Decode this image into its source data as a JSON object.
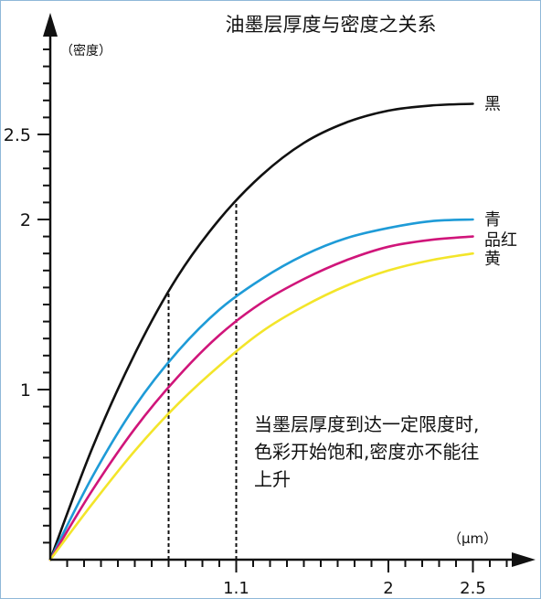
{
  "chart_data": {
    "type": "line",
    "title": "油墨层厚度与密度之关系",
    "ylabel": "（密度）",
    "xlabel": "（μm）",
    "xlim": [
      0,
      2.8
    ],
    "ylim": [
      0,
      3.2
    ],
    "x_ticks": [
      {
        "value": 1.1,
        "label": "1.1"
      },
      {
        "value": 2,
        "label": "2"
      },
      {
        "value": 2.5,
        "label": "2.5"
      }
    ],
    "y_ticks": [
      {
        "value": 1,
        "label": "1"
      },
      {
        "value": 2,
        "label": "2"
      },
      {
        "value": 2.5,
        "label": "2.5"
      }
    ],
    "x_minor_step": 0.1,
    "y_minor_step": 0.1,
    "series": [
      {
        "name": "黑",
        "color": "#111111",
        "x": [
          0,
          0.25,
          0.5,
          0.75,
          1.0,
          1.25,
          1.5,
          1.75,
          2.0,
          2.25,
          2.5
        ],
        "y": [
          0,
          0.66,
          1.21,
          1.66,
          2.0,
          2.26,
          2.45,
          2.57,
          2.64,
          2.67,
          2.68
        ]
      },
      {
        "name": "青",
        "color": "#1e9bd7",
        "x": [
          0,
          0.25,
          0.5,
          0.75,
          1.0,
          1.25,
          1.5,
          1.75,
          2.0,
          2.25,
          2.5
        ],
        "y": [
          0,
          0.49,
          0.9,
          1.22,
          1.47,
          1.65,
          1.79,
          1.89,
          1.95,
          1.99,
          2.0
        ]
      },
      {
        "name": "品红",
        "color": "#d0157a",
        "x": [
          0,
          0.25,
          0.5,
          0.75,
          1.0,
          1.25,
          1.5,
          1.75,
          2.0,
          2.25,
          2.5
        ],
        "y": [
          0,
          0.41,
          0.77,
          1.07,
          1.32,
          1.51,
          1.65,
          1.76,
          1.84,
          1.88,
          1.9
        ]
      },
      {
        "name": "黄",
        "color": "#f3e52a",
        "x": [
          0,
          0.25,
          0.5,
          0.75,
          1.0,
          1.25,
          1.5,
          1.75,
          2.0,
          2.25,
          2.5
        ],
        "y": [
          0,
          0.33,
          0.64,
          0.91,
          1.14,
          1.34,
          1.49,
          1.61,
          1.7,
          1.76,
          1.8
        ]
      }
    ],
    "reference_lines": [
      {
        "x": 0.7
      },
      {
        "x": 1.1
      }
    ],
    "annotation": {
      "lines": [
        "当墨层厚度到达一定限度时,",
        "色彩开始饱和,密度亦不能往",
        "上升"
      ]
    },
    "grid": false
  }
}
